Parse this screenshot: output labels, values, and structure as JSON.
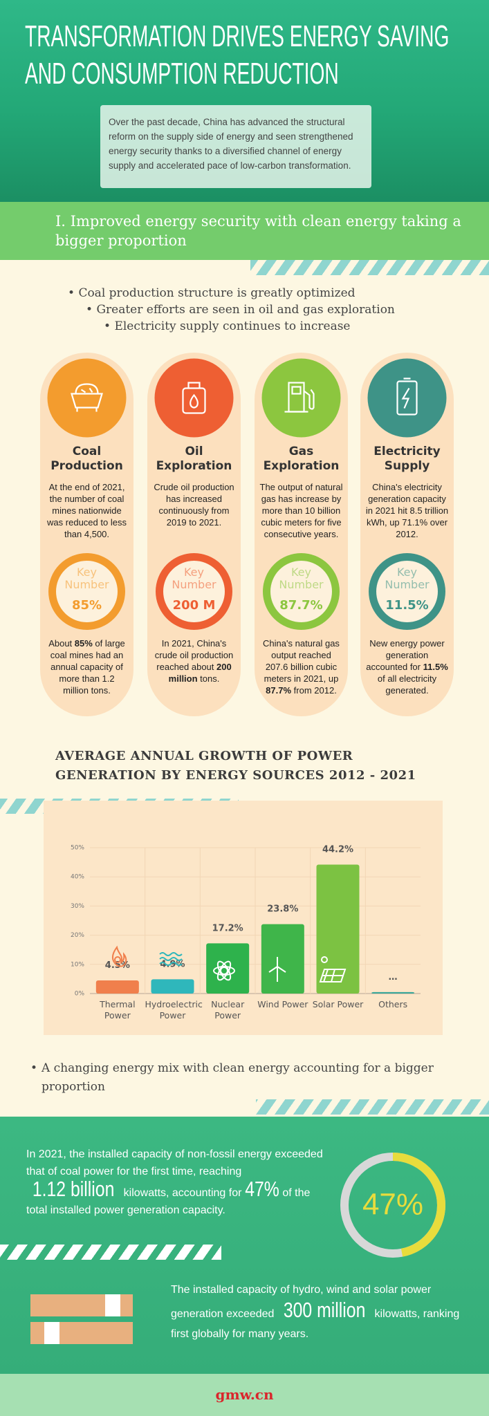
{
  "header": {
    "title": "TRANSFORMATION DRIVES ENERGY SAVING AND CONSUMPTION REDUCTION",
    "intro": "Over the past decade, China has advanced the structural reform on the supply side of energy and seen strengthened energy security thanks to a diversified channel of energy supply and accelerated pace of low-carbon transformation."
  },
  "section_1": {
    "title": "I. Improved energy security with clean energy taking a bigger proportion",
    "bullets": [
      "Coal production structure is greatly optimized",
      "Greater efforts are seen in oil and gas exploration",
      "Electricity supply continues to increase"
    ]
  },
  "cards": [
    {
      "title": "Coal Production",
      "color": "#f39c2e",
      "text": "At the end of 2021, the number of coal mines nationwide was reduced to less than 4,500.",
      "key_label": "Key Number",
      "key_value": "85%",
      "note": [
        "About ",
        "85%",
        " of large coal mines had an annual capacity of more than 1.2 million tons."
      ]
    },
    {
      "title": "Oil Exploration",
      "color": "#ee5f33",
      "text": "Crude oil production has increased continuously from 2019 to 2021.",
      "key_label": "Key Number",
      "key_value": "200 M",
      "note": [
        "In 2021, China's crude oil production reached about ",
        "200 million",
        " tons."
      ]
    },
    {
      "title": "Gas Exploration",
      "color": "#8cc63f",
      "text": "The output of natural gas has increase by more than 10 billion cubic meters for five consecutive years.",
      "key_label": "Key Number",
      "key_value": "87.7%",
      "note": [
        "China's natural gas output reached 207.6 billion cubic meters in 2021, up ",
        "87.7%",
        " from 2012."
      ]
    },
    {
      "title": "Electricity Supply",
      "color": "#3e9387",
      "text": "China's electricity generation capacity in 2021 hit 8.5 trillion kWh, up 71.1% over 2012.",
      "key_label": "Key Number",
      "key_value": "11.5%",
      "note": [
        "New energy power generation accounted for ",
        "11.5%",
        " of all electricity generated."
      ]
    }
  ],
  "chart_data": {
    "type": "bar",
    "title": "AVERAGE ANNUAL GROWTH OF POWER GENERATION BY ENERGY SOURCES 2012 - 2021",
    "categories": [
      "Thermal Power",
      "Hydroelectric Power",
      "Nuclear Power",
      "Wind Power",
      "Solar Power",
      "Others"
    ],
    "series": [
      {
        "values": [
          4.5,
          4.9,
          17.2,
          23.8,
          44.2,
          0.5
        ],
        "colors": [
          "#f07f4c",
          "#2fb7bb",
          "#2eb24c",
          "#3fb54a",
          "#7cc242",
          "#3aa79a"
        ],
        "value_labels": [
          "4.5%",
          "4.9%",
          "17.2%",
          "23.8%",
          "44.2%",
          "…"
        ]
      }
    ],
    "ylim": [
      0,
      50
    ],
    "yticks": [
      {
        "value": 0,
        "label": "0%"
      },
      {
        "value": 10,
        "label": "10%"
      },
      {
        "value": 20,
        "label": "20%"
      },
      {
        "value": 30,
        "label": "30%"
      },
      {
        "value": 40,
        "label": "40%"
      },
      {
        "value": 50,
        "label": "50%"
      }
    ],
    "grid": true
  },
  "section_2": {
    "bullet": "A changing energy mix with clean energy accounting for a bigger proportion",
    "para_1": [
      "In 2021, the installed capacity of non-fossil energy exceeded that of coal power for the first time, reaching ",
      "1.12 billion",
      " kilowatts, accounting for ",
      "47%",
      " of the total installed power generation capacity."
    ],
    "share": {
      "value": 47,
      "label": "47%"
    },
    "para_2": [
      "The installed capacity of hydro, wind and solar power generation exceeded ",
      "300 million",
      " kilowatts, ranking first globally for many years."
    ]
  },
  "footer": {
    "logo": "gmw.cn"
  }
}
